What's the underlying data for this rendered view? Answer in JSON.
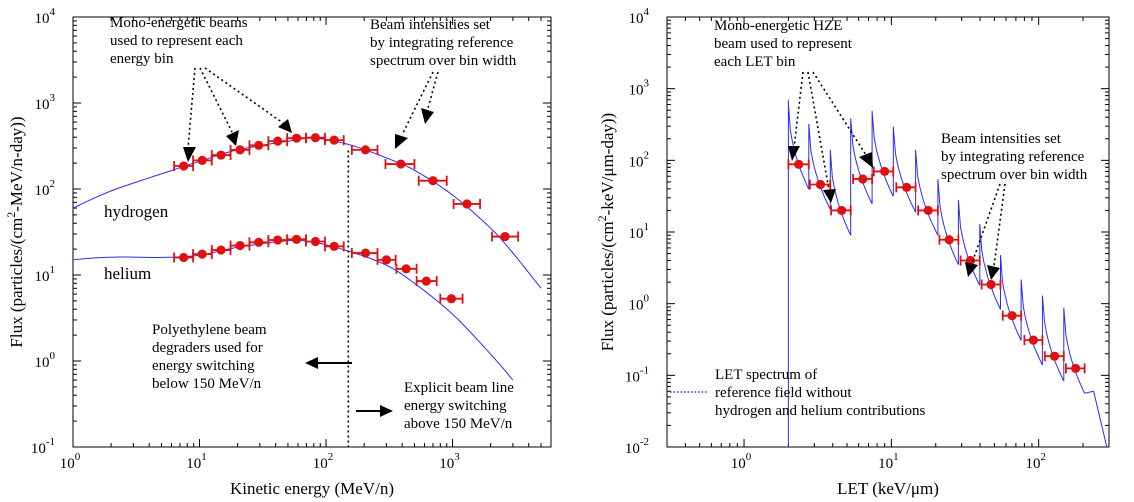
{
  "chart_data": [
    {
      "type": "scatter",
      "xscale": "log",
      "yscale": "log",
      "xlim": [
        1,
        6000
      ],
      "ylim": [
        0.1,
        10000
      ],
      "xlabel": "Kinetic energy (MeV/n)",
      "ylabel": "Flux (particles/(cm²-MeV/n-day))",
      "x_ticks": [
        {
          "v": 1,
          "base": "10",
          "exp": "0"
        },
        {
          "v": 10,
          "base": "10",
          "exp": "1"
        },
        {
          "v": 100,
          "base": "10",
          "exp": "2"
        },
        {
          "v": 1000,
          "base": "10",
          "exp": "3"
        }
      ],
      "y_ticks": [
        {
          "v": 0.1,
          "base": "10",
          "exp": "-1"
        },
        {
          "v": 1,
          "base": "10",
          "exp": "0"
        },
        {
          "v": 10,
          "base": "10",
          "exp": "1"
        },
        {
          "v": 100,
          "base": "10",
          "exp": "2"
        },
        {
          "v": 1000,
          "base": "10",
          "exp": "3"
        },
        {
          "v": 10000,
          "base": "10",
          "exp": "4"
        }
      ],
      "series": [
        {
          "name": "hydrogen",
          "points": [
            {
              "x": 7.5,
              "y": 185,
              "xlo": 6.3,
              "xhi": 8.9
            },
            {
              "x": 10.5,
              "y": 215,
              "xlo": 8.9,
              "xhi": 12.5
            },
            {
              "x": 14.8,
              "y": 248,
              "xlo": 12.5,
              "xhi": 17.6
            },
            {
              "x": 20.9,
              "y": 285,
              "xlo": 17.6,
              "xhi": 24.8
            },
            {
              "x": 29.4,
              "y": 322,
              "xlo": 24.8,
              "xhi": 35
            },
            {
              "x": 41.5,
              "y": 360,
              "xlo": 35,
              "xhi": 49.3
            },
            {
              "x": 58.5,
              "y": 390,
              "xlo": 49.3,
              "xhi": 69.5
            },
            {
              "x": 82.5,
              "y": 395,
              "xlo": 69.5,
              "xhi": 98
            },
            {
              "x": 116,
              "y": 370,
              "xlo": 98,
              "xhi": 138
            },
            {
              "x": 205,
              "y": 285,
              "xlo": 160,
              "xhi": 255
            },
            {
              "x": 390,
              "y": 195,
              "xlo": 295,
              "xhi": 500
            },
            {
              "x": 700,
              "y": 125,
              "xlo": 540,
              "xhi": 900
            },
            {
              "x": 1300,
              "y": 67,
              "xlo": 1020,
              "xhi": 1650
            },
            {
              "x": 2600,
              "y": 28,
              "xlo": 2050,
              "xhi": 3300
            }
          ]
        },
        {
          "name": "helium",
          "points": [
            {
              "x": 7.5,
              "y": 16,
              "xlo": 6.3,
              "xhi": 8.9
            },
            {
              "x": 10.5,
              "y": 17.5,
              "xlo": 8.9,
              "xhi": 12.5
            },
            {
              "x": 14.8,
              "y": 19.5,
              "xlo": 12.5,
              "xhi": 17.6
            },
            {
              "x": 20.9,
              "y": 22,
              "xlo": 17.6,
              "xhi": 24.8
            },
            {
              "x": 29.4,
              "y": 24,
              "xlo": 24.8,
              "xhi": 35
            },
            {
              "x": 41.5,
              "y": 25.5,
              "xlo": 35,
              "xhi": 49.3
            },
            {
              "x": 58.5,
              "y": 26,
              "xlo": 49.3,
              "xhi": 69.5
            },
            {
              "x": 82.5,
              "y": 24.5,
              "xlo": 69.5,
              "xhi": 98
            },
            {
              "x": 116,
              "y": 21.5,
              "xlo": 98,
              "xhi": 138
            },
            {
              "x": 205,
              "y": 18,
              "xlo": 160,
              "xhi": 255
            },
            {
              "x": 300,
              "y": 15,
              "xlo": 255,
              "xhi": 355
            },
            {
              "x": 430,
              "y": 11.8,
              "xlo": 360,
              "xhi": 520
            },
            {
              "x": 620,
              "y": 8.5,
              "xlo": 520,
              "xhi": 750
            },
            {
              "x": 980,
              "y": 5.3,
              "xlo": 800,
              "xhi": 1200
            }
          ]
        }
      ],
      "reference_curves": [
        {
          "label": "hydrogen",
          "x": [
            1,
            2,
            5,
            10,
            20,
            50,
            80,
            150,
            300,
            500,
            1000,
            2000,
            3000,
            5000
          ],
          "y": [
            60,
            95,
            150,
            210,
            285,
            360,
            390,
            330,
            230,
            165,
            85,
            35,
            18,
            7
          ]
        },
        {
          "label": "helium",
          "x": [
            1,
            1.5,
            2.5,
            5,
            10,
            20,
            50,
            80,
            150,
            300,
            500,
            1000,
            2000,
            3000
          ],
          "y": [
            15,
            15.8,
            16.2,
            16,
            17,
            21,
            25,
            24,
            19,
            13,
            8,
            3.5,
            1.2,
            0.6
          ]
        }
      ],
      "cutoff_x": 150,
      "annotations": {
        "mono_beams": [
          "Mono-energetic beams",
          "used to represent each",
          "energy bin"
        ],
        "intensities": [
          "Beam intensities set",
          "by integrating reference",
          "spectrum over bin width"
        ],
        "hydrogen": "hydrogen",
        "helium": "helium",
        "degraders": [
          "Polyethylene beam",
          "degraders used for",
          "energy switching",
          "below 150 MeV/n"
        ],
        "explicit": [
          "Explicit beam line",
          "energy switching",
          "above 150 MeV/n"
        ]
      }
    },
    {
      "type": "scatter",
      "xscale": "log",
      "yscale": "log",
      "xlim": [
        0.3,
        300
      ],
      "ylim": [
        0.01,
        10000
      ],
      "xlabel": "LET (keV/μm)",
      "ylabel": "Flux (particles/(cm²-keV/μm-day))",
      "x_ticks": [
        {
          "v": 1,
          "base": "10",
          "exp": "0"
        },
        {
          "v": 10,
          "base": "10",
          "exp": "1"
        },
        {
          "v": 100,
          "base": "10",
          "exp": "2"
        }
      ],
      "y_ticks": [
        {
          "v": 0.01,
          "base": "10",
          "exp": "-2"
        },
        {
          "v": 0.1,
          "base": "10",
          "exp": "-1"
        },
        {
          "v": 1,
          "base": "10",
          "exp": "0"
        },
        {
          "v": 10,
          "base": "10",
          "exp": "1"
        },
        {
          "v": 100,
          "base": "10",
          "exp": "2"
        },
        {
          "v": 1000,
          "base": "10",
          "exp": "3"
        },
        {
          "v": 10000,
          "base": "10",
          "exp": "4"
        }
      ],
      "series": [
        {
          "name": "Mono-energetic HZE beams",
          "points": [
            {
              "x": 2.35,
              "y": 88,
              "xlo": 2.0,
              "xhi": 2.75
            },
            {
              "x": 3.3,
              "y": 46,
              "xlo": 2.8,
              "xhi": 3.85
            },
            {
              "x": 4.6,
              "y": 20,
              "xlo": 3.9,
              "xhi": 5.3
            },
            {
              "x": 6.4,
              "y": 55,
              "xlo": 5.5,
              "xhi": 7.4
            },
            {
              "x": 9.0,
              "y": 70,
              "xlo": 7.6,
              "xhi": 10.3
            },
            {
              "x": 12.7,
              "y": 42,
              "xlo": 10.8,
              "xhi": 14.6
            },
            {
              "x": 17.8,
              "y": 20,
              "xlo": 15.2,
              "xhi": 20.7
            },
            {
              "x": 24.7,
              "y": 7.8,
              "xlo": 21.2,
              "xhi": 28.5
            },
            {
              "x": 34.4,
              "y": 4.0,
              "xlo": 29.5,
              "xhi": 39.8
            },
            {
              "x": 47.5,
              "y": 1.85,
              "xlo": 41,
              "xhi": 55
            },
            {
              "x": 66,
              "y": 0.68,
              "xlo": 57,
              "xhi": 76
            },
            {
              "x": 92,
              "y": 0.31,
              "xlo": 80,
              "xhi": 106
            },
            {
              "x": 128,
              "y": 0.185,
              "xlo": 110,
              "xhi": 148
            },
            {
              "x": 178,
              "y": 0.125,
              "xlo": 153,
              "xhi": 205
            }
          ]
        }
      ],
      "annotations": {
        "mono_hze": [
          "Mono-energetic HZE",
          "beam used to represent",
          "each LET bin"
        ],
        "intensities": [
          "Beam intensities set",
          "by integrating reference",
          "spectrum over bin width"
        ],
        "legend": [
          "LET spectrum of",
          "reference field without",
          "hydrogen and helium contributions"
        ]
      }
    }
  ],
  "colors": {
    "curve": "#2b2bff",
    "points": "#e01010",
    "text": "#000000"
  }
}
